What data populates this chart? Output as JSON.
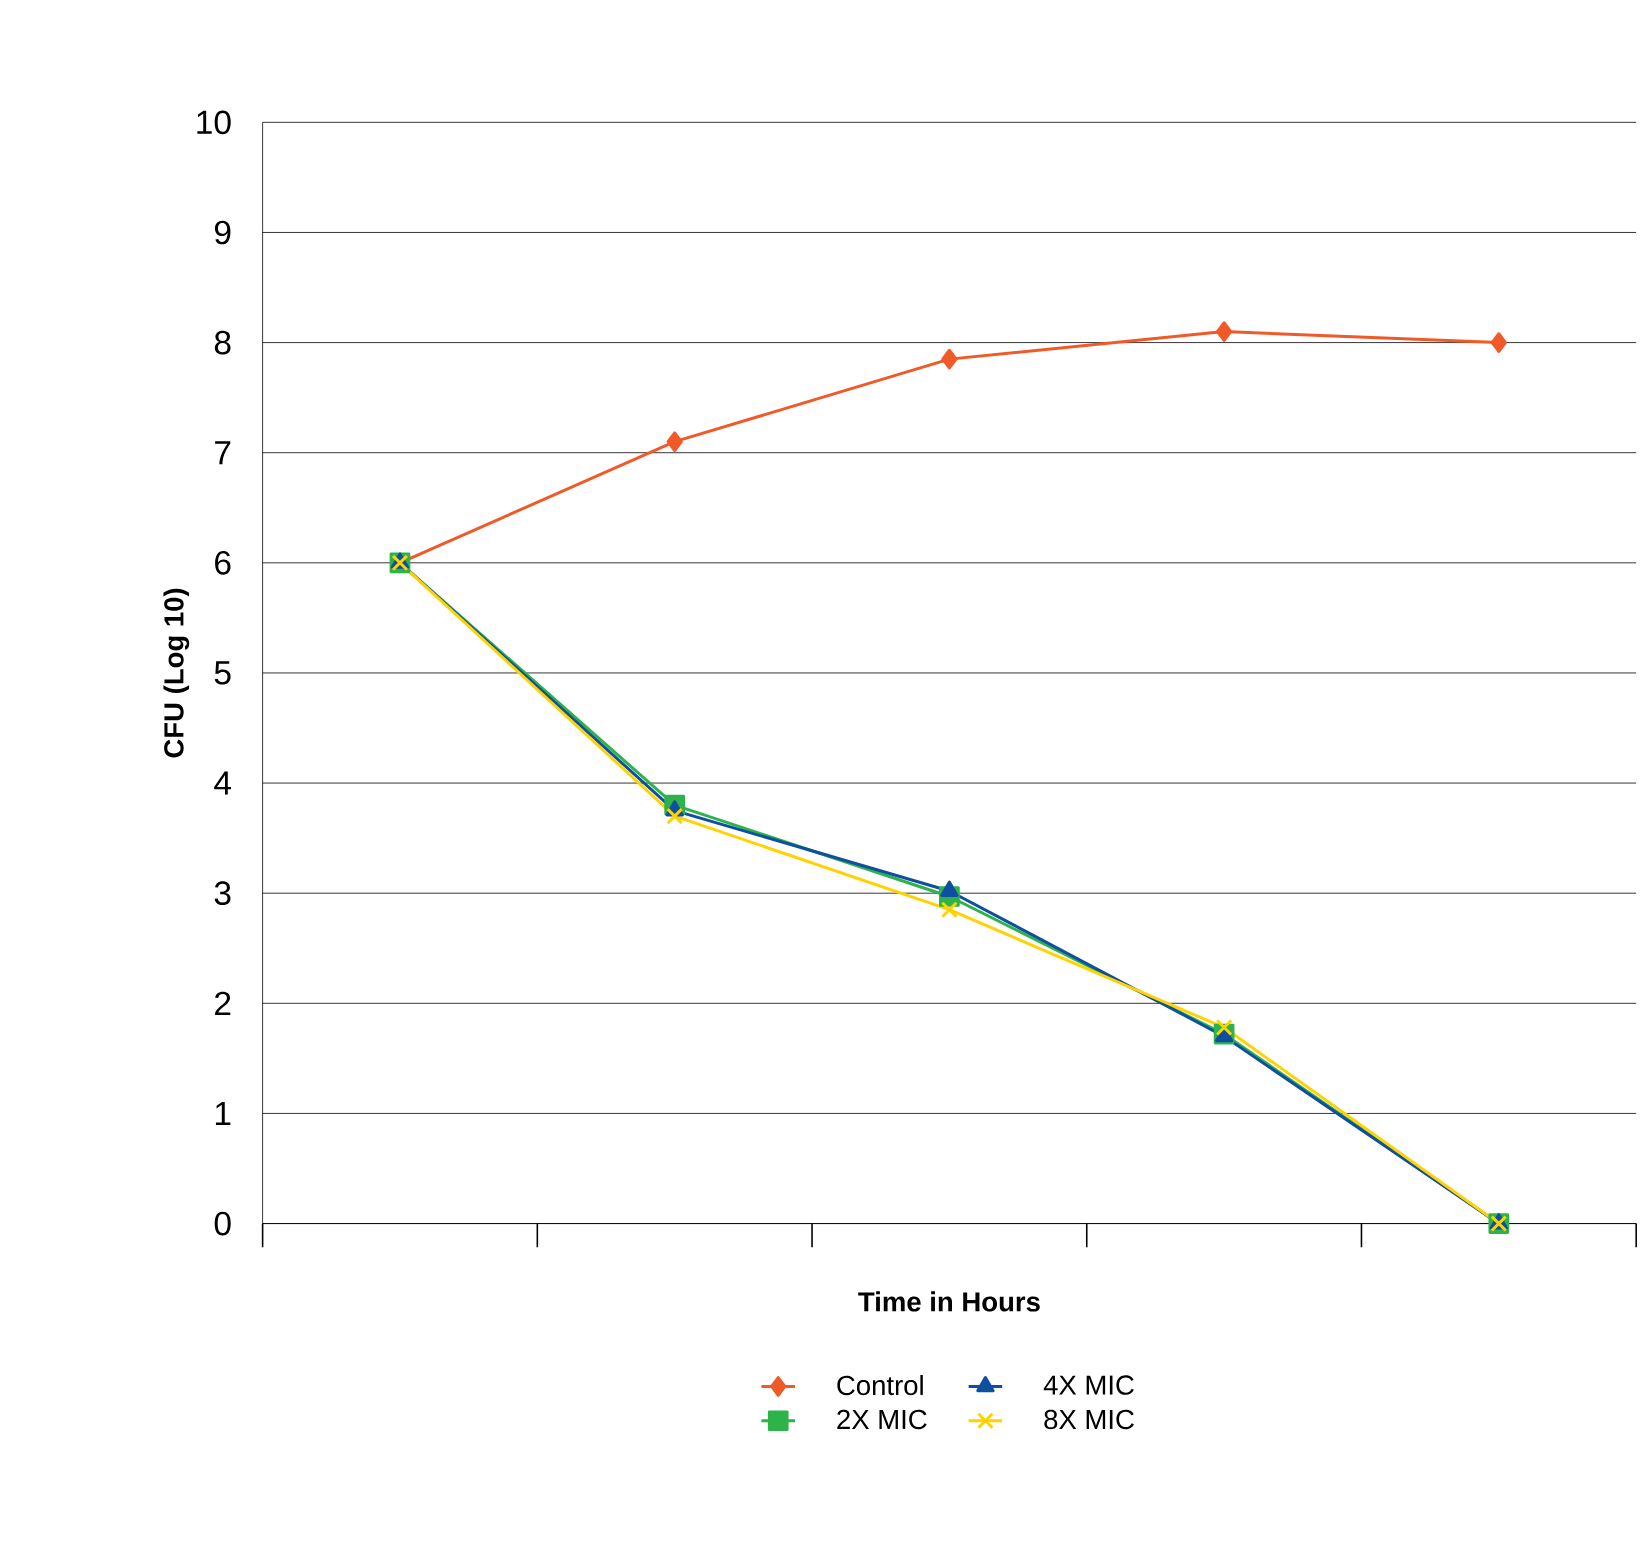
{
  "chart_data": {
    "type": "line",
    "xlabel": "Time in Hours",
    "ylabel": "CFU (Log 10)",
    "categories": [
      null,
      null,
      null,
      null,
      null
    ],
    "series": [
      {
        "name": "Control",
        "color": "#f05a28",
        "marker": "diamond",
        "values": [
          6,
          7.1,
          7.85,
          8.1,
          8.0
        ]
      },
      {
        "name": "2X MIC",
        "color": "#2db34a",
        "marker": "square",
        "values": [
          6,
          3.8,
          2.97,
          1.72,
          0
        ]
      },
      {
        "name": "4X MIC",
        "color": "#0f4fa0",
        "marker": "triangle",
        "values": [
          6,
          3.75,
          3.02,
          1.7,
          0
        ]
      },
      {
        "name": "8X MIC",
        "color": "#ffd200",
        "marker": "cross",
        "values": [
          6,
          3.7,
          2.85,
          1.78,
          0
        ]
      }
    ],
    "ylim": [
      0,
      10
    ],
    "yticks": [
      0,
      1,
      2,
      3,
      4,
      5,
      6,
      7,
      8,
      9,
      10
    ],
    "grid": "y",
    "legend": "bottom",
    "line_style": "solid"
  }
}
